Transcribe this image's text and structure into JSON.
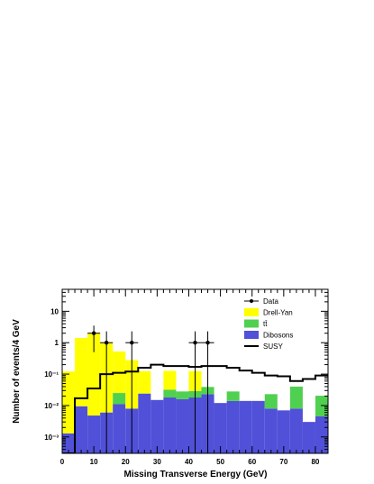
{
  "chart_data": {
    "type": "bar",
    "stacked": true,
    "xlabel": "Missing Transverse Energy (GeV)",
    "ylabel": "Number of events/4 GeV",
    "xlim": [
      0,
      84
    ],
    "ylim": [
      0.0003,
      50
    ],
    "yscale": "log",
    "bin_width": 4,
    "bin_low_edges": [
      0,
      4,
      8,
      12,
      16,
      20,
      24,
      28,
      32,
      36,
      40,
      44,
      48,
      52,
      56,
      60,
      64,
      68,
      72,
      76,
      80
    ],
    "x_ticks": [
      "0",
      "10",
      "20",
      "30",
      "40",
      "50",
      "60",
      "70",
      "80"
    ],
    "y_ticks": [
      "10⁻³",
      "10⁻²",
      "10⁻¹",
      "1",
      "10"
    ],
    "legend_position": "top-right",
    "series": [
      {
        "name": "Dibosons",
        "color": "#5050d8",
        "values": [
          0.0013,
          0.0095,
          0.0048,
          0.006,
          0.011,
          0.008,
          0.024,
          0.015,
          0.018,
          0.016,
          0.018,
          0.023,
          0.012,
          0.014,
          0.014,
          0.014,
          0.008,
          0.007,
          0.008,
          0.003,
          0.0045
        ]
      },
      {
        "name": "tt̄",
        "color": "#50d050",
        "values": [
          0,
          0,
          0,
          0,
          0.014,
          0,
          0,
          0,
          0.014,
          0.012,
          0.011,
          0.016,
          0,
          0.014,
          0,
          0,
          0.015,
          0,
          0.032,
          0,
          0.016
        ]
      },
      {
        "name": "Drell-Yan",
        "color": "#ffff00",
        "values": [
          0.12,
          1.4,
          2.0,
          1.0,
          0.5,
          0.27,
          0.1,
          0,
          0.095,
          0,
          0.095,
          0,
          0,
          0,
          0,
          0,
          0,
          0,
          0,
          0,
          0
        ]
      }
    ],
    "susy": {
      "name": "SUSY",
      "color": "#000000",
      "values": [
        0.0003,
        0.017,
        0.035,
        0.1,
        0.11,
        0.12,
        0.16,
        0.2,
        0.18,
        0.18,
        0.17,
        0.18,
        0.18,
        0.16,
        0.13,
        0.11,
        0.09,
        0.085,
        0.06,
        0.07,
        0.09
      ]
    },
    "data": {
      "name": "Data",
      "points": [
        {
          "x": 10,
          "y": 2,
          "xerr": 2,
          "ylow": 0.5,
          "yhigh": 3.5
        },
        {
          "x": 14,
          "y": 1,
          "xerr": 2,
          "ylow": 0.0003,
          "yhigh": 2.3
        },
        {
          "x": 22,
          "y": 1,
          "xerr": 2,
          "ylow": 0.0003,
          "yhigh": 2.3
        },
        {
          "x": 42,
          "y": 1,
          "xerr": 2,
          "ylow": 0.0003,
          "yhigh": 2.3
        },
        {
          "x": 46,
          "y": 1,
          "xerr": 2,
          "ylow": 0.0003,
          "yhigh": 2.3
        }
      ]
    },
    "legend": [
      "Data",
      "Drell-Yan",
      "tt̄",
      "Dibosons",
      "SUSY"
    ]
  }
}
